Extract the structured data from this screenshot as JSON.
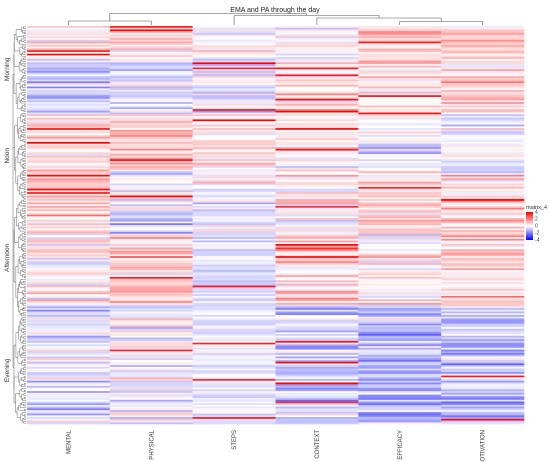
{
  "chart_data": {
    "type": "heatmap",
    "title": "EMA and PA through the day",
    "columns": [
      "MENTAL",
      "PHYSICAL",
      "STEPS",
      "CONTEXT",
      "EFFICACY",
      "MOTIVATION"
    ],
    "row_groups": [
      {
        "label": "Morning",
        "rows": 50
      },
      {
        "label": "Noon",
        "rows": 50
      },
      {
        "label": "Afternoon",
        "rows": 68
      },
      {
        "label": "Evening",
        "rows": 62
      }
    ],
    "color_scale": {
      "name": "matrix_4",
      "min": -4,
      "max": 4,
      "ticks": [
        4,
        2,
        0,
        -2,
        -4
      ],
      "low_color": "#0000ff",
      "mid_color": "#ffffff",
      "high_color": "#ff0000"
    },
    "legend_position": "right",
    "column_dendrogram": true,
    "row_dendrogram": true,
    "column_patterns": [
      {
        "name": "MENTAL",
        "segments": [
          [
            0.3,
            0.5
          ],
          [
            -0.9,
            0.6
          ],
          [
            0.55,
            0.5
          ],
          [
            0.8,
            0.6
          ],
          [
            0.2,
            0.6
          ],
          [
            -0.5,
            0.6
          ]
        ]
      },
      {
        "name": "PHYSICAL",
        "segments": [
          [
            0.55,
            0.5
          ],
          [
            -0.4,
            0.6
          ],
          [
            0.7,
            0.5
          ],
          [
            -0.6,
            0.6
          ],
          [
            0.9,
            0.6
          ],
          [
            -0.2,
            0.6
          ]
        ]
      },
      {
        "name": "STEPS",
        "segments": [
          [
            0.1,
            0.5
          ],
          [
            -0.3,
            0.6
          ],
          [
            0.4,
            0.5
          ],
          [
            -0.2,
            0.6
          ],
          [
            -0.45,
            0.3
          ],
          [
            -0.35,
            0.3
          ]
        ]
      },
      {
        "name": "CONTEXT",
        "segments": [
          [
            0.4,
            0.5
          ],
          [
            0.55,
            0.6
          ],
          [
            0.1,
            0.5
          ],
          [
            0.35,
            0.6
          ],
          [
            0.6,
            0.6
          ],
          [
            -0.85,
            0.6
          ]
        ]
      },
      {
        "name": "EFFICACY",
        "segments": [
          [
            0.7,
            0.5
          ],
          [
            0.45,
            0.6
          ],
          [
            -0.3,
            0.5
          ],
          [
            0.6,
            0.6
          ],
          [
            0.4,
            0.6
          ],
          [
            -1.2,
            0.6
          ]
        ]
      },
      {
        "name": "MOTIVATION",
        "segments": [
          [
            0.8,
            0.5
          ],
          [
            0.6,
            0.6
          ],
          [
            -0.2,
            0.5
          ],
          [
            0.5,
            0.6
          ],
          [
            0.7,
            0.6
          ],
          [
            -0.9,
            0.6
          ]
        ]
      }
    ]
  }
}
